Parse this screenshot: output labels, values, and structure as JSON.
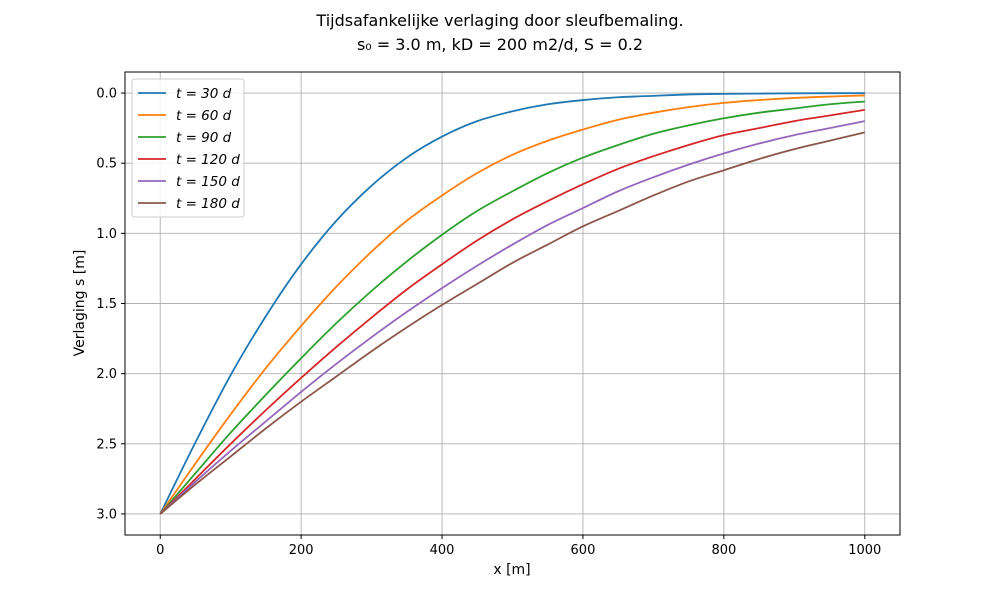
{
  "chart_data": {
    "type": "line",
    "title": "Tijdsafankelijke verlaging door sleufbemaling.",
    "subtitle": "s₀ = 3.0 m, kD = 200 m2/d, S = 0.2",
    "xlabel": "x [m]",
    "ylabel": "Verlaging s [m]",
    "xlim": [
      -50,
      1050
    ],
    "ylim": [
      3.15,
      -0.15
    ],
    "y_inverted": true,
    "grid": true,
    "legend_position": "top-left",
    "xticks": [
      0,
      200,
      400,
      600,
      800,
      1000
    ],
    "yticks": [
      0.0,
      0.5,
      1.0,
      1.5,
      2.0,
      2.5,
      3.0
    ],
    "xtick_labels": [
      "0",
      "200",
      "400",
      "600",
      "800",
      "1000"
    ],
    "ytick_labels": [
      "0.0",
      "0.5",
      "1.0",
      "1.5",
      "2.0",
      "2.5",
      "3.0"
    ],
    "x": [
      0,
      50,
      100,
      150,
      200,
      250,
      300,
      350,
      400,
      450,
      500,
      550,
      600,
      650,
      700,
      750,
      800,
      850,
      900,
      950,
      1000
    ],
    "series": [
      {
        "name": "t = 30 d",
        "color": "#1f77b4",
        "values": [
          3.0,
          2.49,
          2.01,
          1.59,
          1.22,
          0.91,
          0.66,
          0.46,
          0.31,
          0.2,
          0.13,
          0.08,
          0.05,
          0.03,
          0.02,
          0.01,
          0.006,
          0.004,
          0.002,
          0.001,
          0.001
        ]
      },
      {
        "name": "t = 60 d",
        "color": "#ff7f0e",
        "values": [
          3.0,
          2.64,
          2.29,
          1.96,
          1.66,
          1.38,
          1.13,
          0.91,
          0.73,
          0.57,
          0.44,
          0.34,
          0.26,
          0.19,
          0.14,
          0.1,
          0.07,
          0.05,
          0.035,
          0.025,
          0.017
        ]
      },
      {
        "name": "t = 90 d",
        "color": "#2ca02c",
        "values": [
          3.0,
          2.71,
          2.42,
          2.15,
          1.89,
          1.64,
          1.41,
          1.2,
          1.01,
          0.84,
          0.7,
          0.57,
          0.46,
          0.37,
          0.29,
          0.23,
          0.18,
          0.14,
          0.11,
          0.08,
          0.06
        ]
      },
      {
        "name": "t = 120 d",
        "color": "#d62728",
        "values": [
          3.0,
          2.75,
          2.5,
          2.26,
          2.03,
          1.81,
          1.6,
          1.4,
          1.22,
          1.05,
          0.9,
          0.77,
          0.65,
          0.54,
          0.45,
          0.37,
          0.3,
          0.25,
          0.2,
          0.16,
          0.12
        ]
      },
      {
        "name": "t = 150 d",
        "color": "#9467bd",
        "values": [
          3.0,
          2.77,
          2.55,
          2.34,
          2.13,
          1.93,
          1.74,
          1.56,
          1.39,
          1.23,
          1.08,
          0.94,
          0.82,
          0.7,
          0.6,
          0.51,
          0.43,
          0.36,
          0.3,
          0.25,
          0.2
        ]
      },
      {
        "name": "t = 180 d",
        "color": "#8c564b",
        "values": [
          3.0,
          2.79,
          2.59,
          2.39,
          2.2,
          2.02,
          1.84,
          1.67,
          1.51,
          1.36,
          1.21,
          1.08,
          0.95,
          0.84,
          0.73,
          0.63,
          0.55,
          0.47,
          0.4,
          0.34,
          0.28
        ]
      }
    ]
  }
}
